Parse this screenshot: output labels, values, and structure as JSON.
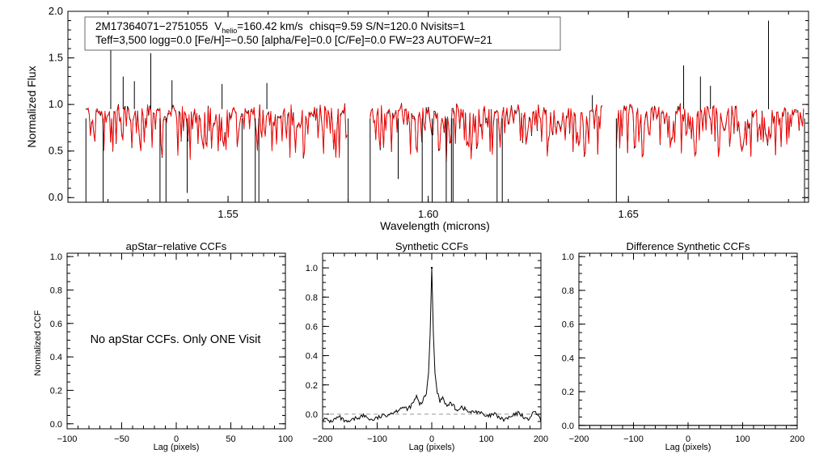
{
  "chart_data": [
    {
      "type": "line",
      "name": "spectrum",
      "info_line1": {
        "id": "2M17364071−2751055",
        "v_prefix": "V",
        "v_sub": "helio",
        "v_value": "=160.42 km/s",
        "rest": "chisq=9.59  S/N=120.0  Nvisits=1"
      },
      "info_line2": "Teff=3,500 logg=0.0 [Fe/H]=−0.50 [alpha/Fe]=0.0 [C/Fe]=0.0 FW=23 AUTOFW=21",
      "xlabel": "Wavelength (microns)",
      "ylabel": "Normalized Flux",
      "xlim": [
        1.51,
        1.695
      ],
      "ylim": [
        -0.05,
        2.0
      ],
      "xticks": [
        1.55,
        1.6,
        1.65
      ],
      "xtick_labels": [
        "1.55",
        "1.60",
        "1.65"
      ],
      "yticks": [
        0.0,
        0.5,
        1.0,
        1.5,
        2.0
      ],
      "ytick_labels": [
        "0.0",
        "0.5",
        "1.0",
        "1.5",
        "2.0"
      ],
      "chips": [
        [
          1.5145,
          1.58
        ],
        [
          1.5855,
          1.6435
        ],
        [
          1.647,
          1.694
        ]
      ],
      "series": [
        {
          "name": "observed",
          "color": "#000000"
        },
        {
          "name": "model",
          "color": "#ff0000"
        }
      ],
      "spikes": [
        {
          "x": 1.5207,
          "y": 1.62
        },
        {
          "x": 1.5238,
          "y": 1.3
        },
        {
          "x": 1.5266,
          "y": 1.25
        },
        {
          "x": 1.5307,
          "y": 1.55
        },
        {
          "x": 1.536,
          "y": 1.26
        },
        {
          "x": 1.5485,
          "y": 1.22
        },
        {
          "x": 1.5597,
          "y": 1.23
        },
        {
          "x": 1.641,
          "y": 1.1
        },
        {
          "x": 1.6638,
          "y": 1.42
        },
        {
          "x": 1.668,
          "y": 1.3
        },
        {
          "x": 1.6705,
          "y": 1.2
        },
        {
          "x": 1.685,
          "y": 1.9
        }
      ],
      "dips": [
        {
          "x": 1.5145,
          "y": -0.05
        },
        {
          "x": 1.5188,
          "y": -0.05
        },
        {
          "x": 1.533,
          "y": -0.05
        },
        {
          "x": 1.5345,
          "y": -0.05
        },
        {
          "x": 1.5398,
          "y": 0.05
        },
        {
          "x": 1.5535,
          "y": -0.05
        },
        {
          "x": 1.5568,
          "y": -0.05
        },
        {
          "x": 1.5577,
          "y": -0.05
        },
        {
          "x": 1.58,
          "y": -0.05
        },
        {
          "x": 1.5855,
          "y": -0.05
        },
        {
          "x": 1.5925,
          "y": 0.2
        },
        {
          "x": 1.5985,
          "y": -0.05
        },
        {
          "x": 1.601,
          "y": -0.05
        },
        {
          "x": 1.6045,
          "y": -0.05
        },
        {
          "x": 1.6058,
          "y": -0.05
        },
        {
          "x": 1.6062,
          "y": -0.05
        },
        {
          "x": 1.6172,
          "y": -0.05
        },
        {
          "x": 1.6185,
          "y": -0.05
        },
        {
          "x": 1.647,
          "y": -0.05
        },
        {
          "x": 1.694,
          "y": -0.05
        }
      ]
    },
    {
      "type": "line",
      "name": "apstar-ccf",
      "title": "apStar−relative CCFs",
      "xlabel": "Lag (pixels)",
      "ylabel": "Normalized CCF",
      "xlim": [
        -100,
        100
      ],
      "ylim": [
        -0.03,
        1.02
      ],
      "xticks": [
        -100,
        -50,
        0,
        50,
        100
      ],
      "xtick_labels": [
        "−100",
        "−50",
        "0",
        "50",
        "100"
      ],
      "yticks": [
        0.0,
        0.2,
        0.4,
        0.6,
        0.8,
        1.0
      ],
      "ytick_labels": [
        "0.0",
        "0.2",
        "0.4",
        "0.6",
        "0.8",
        "1.0"
      ],
      "annotation": "No apStar CCFs.  Only ONE Visit"
    },
    {
      "type": "line",
      "name": "synthetic-ccf",
      "title": "Synthetic CCFs",
      "xlabel": "Lag (pixels)",
      "xlim": [
        -200,
        200
      ],
      "ylim": [
        -0.1,
        1.1
      ],
      "xticks": [
        -200,
        -100,
        0,
        100,
        200
      ],
      "xtick_labels": [
        "−200",
        "−100",
        "0",
        "100",
        "200"
      ],
      "yticks": [
        0.0,
        0.2,
        0.4,
        0.6,
        0.8,
        1.0
      ],
      "ytick_labels": [
        "0.0",
        "0.2",
        "0.4",
        "0.6",
        "0.8",
        "1.0"
      ],
      "reference_line": 0.0,
      "peak": {
        "x": 0,
        "y": 1.0
      },
      "curve": [
        [
          -200,
          -0.03
        ],
        [
          -185,
          -0.05
        ],
        [
          -170,
          -0.02
        ],
        [
          -155,
          -0.06
        ],
        [
          -140,
          -0.03
        ],
        [
          -125,
          -0.01
        ],
        [
          -110,
          -0.04
        ],
        [
          -95,
          -0.02
        ],
        [
          -80,
          0.0
        ],
        [
          -65,
          0.02
        ],
        [
          -55,
          0.05
        ],
        [
          -45,
          0.03
        ],
        [
          -35,
          0.07
        ],
        [
          -28,
          0.12
        ],
        [
          -22,
          0.06
        ],
        [
          -15,
          0.1
        ],
        [
          -10,
          0.14
        ],
        [
          -6,
          0.28
        ],
        [
          -3,
          0.55
        ],
        [
          0,
          1.0
        ],
        [
          3,
          0.55
        ],
        [
          6,
          0.28
        ],
        [
          10,
          0.15
        ],
        [
          15,
          0.09
        ],
        [
          20,
          0.12
        ],
        [
          28,
          0.05
        ],
        [
          35,
          0.08
        ],
        [
          45,
          0.03
        ],
        [
          55,
          0.05
        ],
        [
          70,
          0.01
        ],
        [
          85,
          0.02
        ],
        [
          100,
          -0.02
        ],
        [
          115,
          0.0
        ],
        [
          130,
          -0.04
        ],
        [
          145,
          -0.02
        ],
        [
          160,
          0.01
        ],
        [
          175,
          -0.04
        ],
        [
          190,
          0.02
        ],
        [
          200,
          -0.05
        ]
      ]
    },
    {
      "type": "line",
      "name": "difference-ccf",
      "title": "Difference Synthetic CCFs",
      "xlabel": "Lag (pixels)",
      "xlim": [
        -200,
        200
      ],
      "ylim": [
        -0.02,
        1.02
      ],
      "xticks": [
        -200,
        -100,
        0,
        100,
        200
      ],
      "xtick_labels": [
        "−200",
        "−100",
        "0",
        "100",
        "200"
      ],
      "yticks": [
        0.0,
        0.2,
        0.4,
        0.6,
        0.8,
        1.0
      ],
      "ytick_labels": [
        "0.0",
        "0.2",
        "0.4",
        "0.6",
        "0.8",
        "1.0"
      ],
      "curve": [
        [
          -200,
          0.0
        ],
        [
          200,
          0.0
        ]
      ]
    }
  ]
}
